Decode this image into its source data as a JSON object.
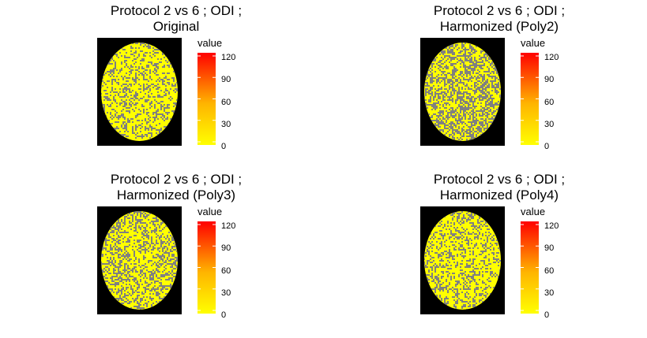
{
  "chart_data": [
    {
      "type": "heatmap",
      "title_line1": "Protocol 2 vs 6 ; ODI ;",
      "title_line2": "Original",
      "legend_title": "value",
      "colorbar_ticks": [
        "0",
        "30",
        "60",
        "90",
        "120"
      ],
      "value_range": [
        0,
        120
      ],
      "colormap": [
        "#ffff00",
        "#ff0000"
      ],
      "background_color": "#000000",
      "missing_color": "#808080",
      "density": 0.32,
      "seed": 11
    },
    {
      "type": "heatmap",
      "title_line1": "Protocol 2 vs 6 ; ODI ;",
      "title_line2": "Harmonized (Poly2)",
      "legend_title": "value",
      "colorbar_ticks": [
        "0",
        "30",
        "60",
        "90",
        "120"
      ],
      "value_range": [
        0,
        120
      ],
      "colormap": [
        "#ffff00",
        "#ff0000"
      ],
      "background_color": "#000000",
      "missing_color": "#808080",
      "density": 0.48,
      "seed": 23
    },
    {
      "type": "heatmap",
      "title_line1": "Protocol 2 vs 6 ; ODI ;",
      "title_line2": "Harmonized (Poly3)",
      "legend_title": "value",
      "colorbar_ticks": [
        "0",
        "30",
        "60",
        "90",
        "120"
      ],
      "value_range": [
        0,
        120
      ],
      "colormap": [
        "#ffff00",
        "#ff0000"
      ],
      "background_color": "#000000",
      "missing_color": "#808080",
      "density": 0.38,
      "seed": 37
    },
    {
      "type": "heatmap",
      "title_line1": "Protocol 2 vs 6 ; ODI ;",
      "title_line2": "Harmonized (Poly4)",
      "legend_title": "value",
      "colorbar_ticks": [
        "0",
        "30",
        "60",
        "90",
        "120"
      ],
      "value_range": [
        0,
        120
      ],
      "colormap": [
        "#ffff00",
        "#ff0000"
      ],
      "background_color": "#000000",
      "missing_color": "#808080",
      "density": 0.34,
      "seed": 51
    }
  ]
}
